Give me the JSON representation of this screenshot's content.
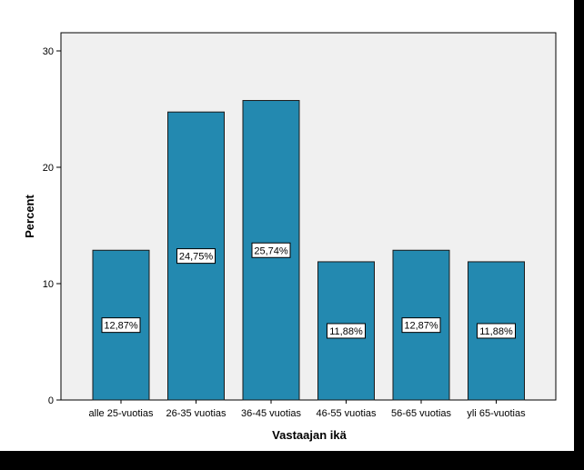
{
  "chart_data": {
    "type": "bar",
    "title": "",
    "xlabel": "Vastaajan ikä",
    "ylabel": "Percent",
    "categories": [
      "alle 25-vuotias",
      "26-35 vuotias",
      "36-45 vuotias",
      "46-55 vuotias",
      "56-65 vuotias",
      "yli 65-vuotias"
    ],
    "values": [
      12.87,
      24.75,
      25.74,
      11.88,
      12.87,
      11.88
    ],
    "data_labels": [
      "12,87%",
      "24,75%",
      "25,74%",
      "11,88%",
      "12,87%",
      "11,88%"
    ],
    "ylim": [
      0,
      30
    ],
    "yticks": [
      0,
      10,
      20,
      30
    ],
    "ytick_labels": [
      "0",
      "10",
      "20",
      "30"
    ],
    "grid": false,
    "legend": "none",
    "colors": {
      "bar": "#2389b0",
      "bar_edge": "#1a1a1a",
      "plot_background": "#f0f0f0",
      "figure_background": "#ffffff",
      "frame": "#000000"
    }
  }
}
